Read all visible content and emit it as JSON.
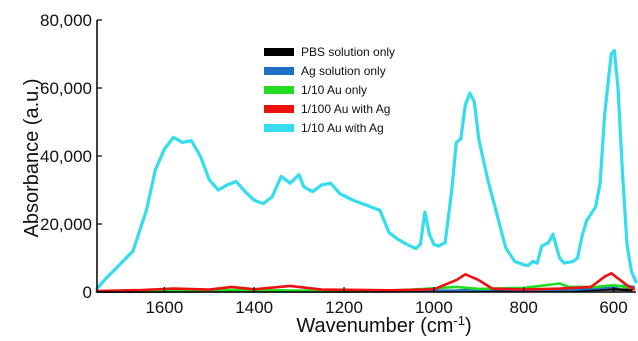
{
  "chart_data": {
    "type": "line",
    "xlabel": "Wavenumber (cm",
    "xlabel_sup": "-1",
    "xlabel_end": ")",
    "ylabel": "Absorbance (a.u.)",
    "xlim": [
      1750,
      550
    ],
    "ylim": [
      0,
      80000
    ],
    "x_reversed": true,
    "xticks": [
      1600,
      1400,
      1200,
      1000,
      800,
      600
    ],
    "yticks": [
      0,
      20000,
      40000,
      60000,
      80000
    ],
    "xtick_labels": [
      "1600",
      "1400",
      "1200",
      "1000",
      "800",
      "600"
    ],
    "ytick_labels": [
      "0",
      "20,000",
      "40,000",
      "60,000",
      "80,000"
    ],
    "legend_position": "top-center",
    "grid": false,
    "series": [
      {
        "name": "PBS solution only",
        "color": "#000000",
        "points": [
          [
            1750,
            100
          ],
          [
            1500,
            200
          ],
          [
            1200,
            150
          ],
          [
            950,
            300
          ],
          [
            850,
            500
          ],
          [
            700,
            400
          ],
          [
            600,
            800
          ],
          [
            560,
            600
          ]
        ]
      },
      {
        "name": "Ag solution only",
        "color": "#1f6fc4",
        "points": [
          [
            1750,
            150
          ],
          [
            1500,
            300
          ],
          [
            1200,
            200
          ],
          [
            950,
            400
          ],
          [
            850,
            800
          ],
          [
            800,
            500
          ],
          [
            700,
            600
          ],
          [
            620,
            1200
          ],
          [
            580,
            1800
          ],
          [
            555,
            1500
          ]
        ]
      },
      {
        "name": "1/10 Au only",
        "color": "#22dd22",
        "points": [
          [
            1750,
            200
          ],
          [
            1600,
            400
          ],
          [
            1450,
            600
          ],
          [
            1300,
            400
          ],
          [
            1100,
            300
          ],
          [
            950,
            1500
          ],
          [
            900,
            900
          ],
          [
            800,
            1200
          ],
          [
            720,
            2500
          ],
          [
            700,
            1500
          ],
          [
            640,
            1500
          ],
          [
            600,
            2000
          ],
          [
            560,
            1200
          ]
        ]
      },
      {
        "name": "1/100 Au with  Ag",
        "color": "#ee1111",
        "points": [
          [
            1750,
            300
          ],
          [
            1650,
            600
          ],
          [
            1580,
            1000
          ],
          [
            1500,
            700
          ],
          [
            1450,
            1500
          ],
          [
            1400,
            800
          ],
          [
            1320,
            1800
          ],
          [
            1250,
            700
          ],
          [
            1100,
            500
          ],
          [
            1000,
            800
          ],
          [
            950,
            3500
          ],
          [
            930,
            5200
          ],
          [
            900,
            3500
          ],
          [
            870,
            1000
          ],
          [
            800,
            700
          ],
          [
            720,
            1000
          ],
          [
            650,
            1500
          ],
          [
            620,
            4500
          ],
          [
            605,
            5500
          ],
          [
            590,
            4000
          ],
          [
            570,
            2000
          ],
          [
            555,
            800
          ]
        ]
      },
      {
        "name": "1/10 Au with  Ag",
        "color": "#33ddee",
        "points": [
          [
            1750,
            1000
          ],
          [
            1730,
            4000
          ],
          [
            1700,
            8000
          ],
          [
            1670,
            12000
          ],
          [
            1640,
            24000
          ],
          [
            1620,
            36000
          ],
          [
            1600,
            42000
          ],
          [
            1580,
            45500
          ],
          [
            1560,
            44000
          ],
          [
            1540,
            44500
          ],
          [
            1520,
            40000
          ],
          [
            1500,
            33000
          ],
          [
            1480,
            30000
          ],
          [
            1460,
            31500
          ],
          [
            1440,
            32500
          ],
          [
            1420,
            29500
          ],
          [
            1400,
            27000
          ],
          [
            1380,
            26000
          ],
          [
            1360,
            28000
          ],
          [
            1340,
            34000
          ],
          [
            1320,
            32000
          ],
          [
            1300,
            34500
          ],
          [
            1290,
            31000
          ],
          [
            1270,
            29500
          ],
          [
            1250,
            31500
          ],
          [
            1230,
            32000
          ],
          [
            1210,
            29000
          ],
          [
            1180,
            27000
          ],
          [
            1150,
            25500
          ],
          [
            1120,
            24000
          ],
          [
            1100,
            17500
          ],
          [
            1080,
            15500
          ],
          [
            1060,
            14000
          ],
          [
            1040,
            12800
          ],
          [
            1030,
            14000
          ],
          [
            1020,
            23500
          ],
          [
            1010,
            17000
          ],
          [
            1000,
            14000
          ],
          [
            990,
            13500
          ],
          [
            975,
            14500
          ],
          [
            960,
            30000
          ],
          [
            950,
            44000
          ],
          [
            940,
            45000
          ],
          [
            930,
            55000
          ],
          [
            920,
            58500
          ],
          [
            910,
            56000
          ],
          [
            900,
            45000
          ],
          [
            880,
            33000
          ],
          [
            860,
            23000
          ],
          [
            840,
            13000
          ],
          [
            820,
            9000
          ],
          [
            800,
            8000
          ],
          [
            790,
            7800
          ],
          [
            780,
            9000
          ],
          [
            770,
            8500
          ],
          [
            760,
            13500
          ],
          [
            745,
            14500
          ],
          [
            735,
            17000
          ],
          [
            720,
            10000
          ],
          [
            710,
            8500
          ],
          [
            690,
            9000
          ],
          [
            680,
            10000
          ],
          [
            670,
            16500
          ],
          [
            660,
            21000
          ],
          [
            640,
            25000
          ],
          [
            630,
            32000
          ],
          [
            620,
            52000
          ],
          [
            610,
            64000
          ],
          [
            605,
            70000
          ],
          [
            598,
            71000
          ],
          [
            590,
            60000
          ],
          [
            580,
            35000
          ],
          [
            570,
            14000
          ],
          [
            560,
            6000
          ],
          [
            550,
            3000
          ]
        ]
      }
    ]
  }
}
